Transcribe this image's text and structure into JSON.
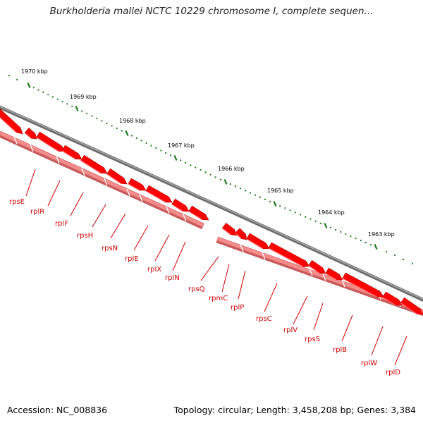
{
  "title": "Burkholderia mallei NCTC 10229 chromosome I, complete sequen...",
  "footer": {
    "accession": "Accession: NC_008836",
    "summary": "Topology: circular; Length: 3,458,208 bp; Genes: 3,384"
  },
  "kbp_labels": [
    "1970 kbp",
    "1969 kbp",
    "1968 kbp",
    "1967 kbp",
    "1966 kbp",
    "1965 kbp",
    "1964 kbp",
    "1963 kbp"
  ],
  "genes": [
    "rpsE",
    "rplR",
    "rplF",
    "rpsH",
    "rpsN",
    "rplE",
    "rplX",
    "rplN",
    "rpsQ",
    "rpmC",
    "rplP",
    "rpsC",
    "rplV",
    "rpsS",
    "rplB",
    "rplW",
    "rplD"
  ],
  "colors": {
    "backbone": "#8a8a8a",
    "cds": "#ff0000",
    "gene_track": "#f58c8c",
    "tick": "#1a7a1a",
    "label": "#d40000"
  }
}
